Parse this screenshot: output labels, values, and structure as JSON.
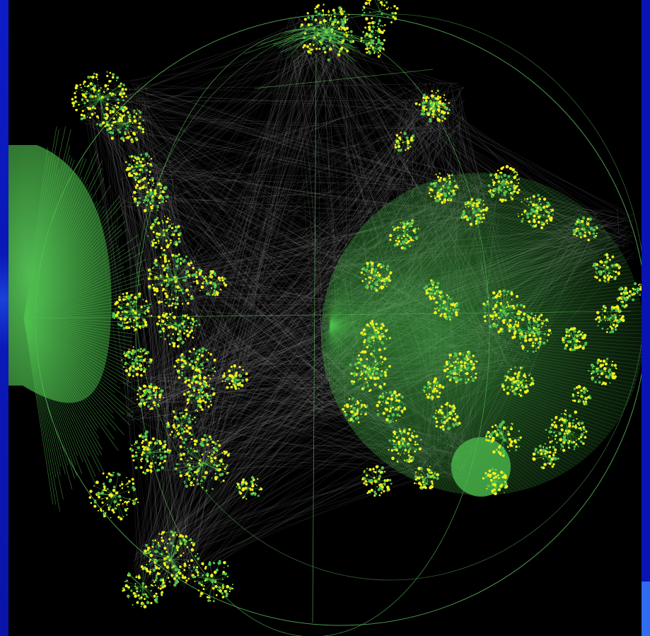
{
  "visualization": {
    "kind": "3d-hyperbolic-graph",
    "colors": {
      "background": "#000000",
      "frame": "#0a14b4",
      "frame_accent": "#2f6cf0",
      "edge": "#8a8a8a",
      "node": "#f0f020",
      "branch": "#4fc04f",
      "wireframe": "#5fbf5f",
      "cluster_fill": "#4fc04f"
    },
    "labels": []
  }
}
